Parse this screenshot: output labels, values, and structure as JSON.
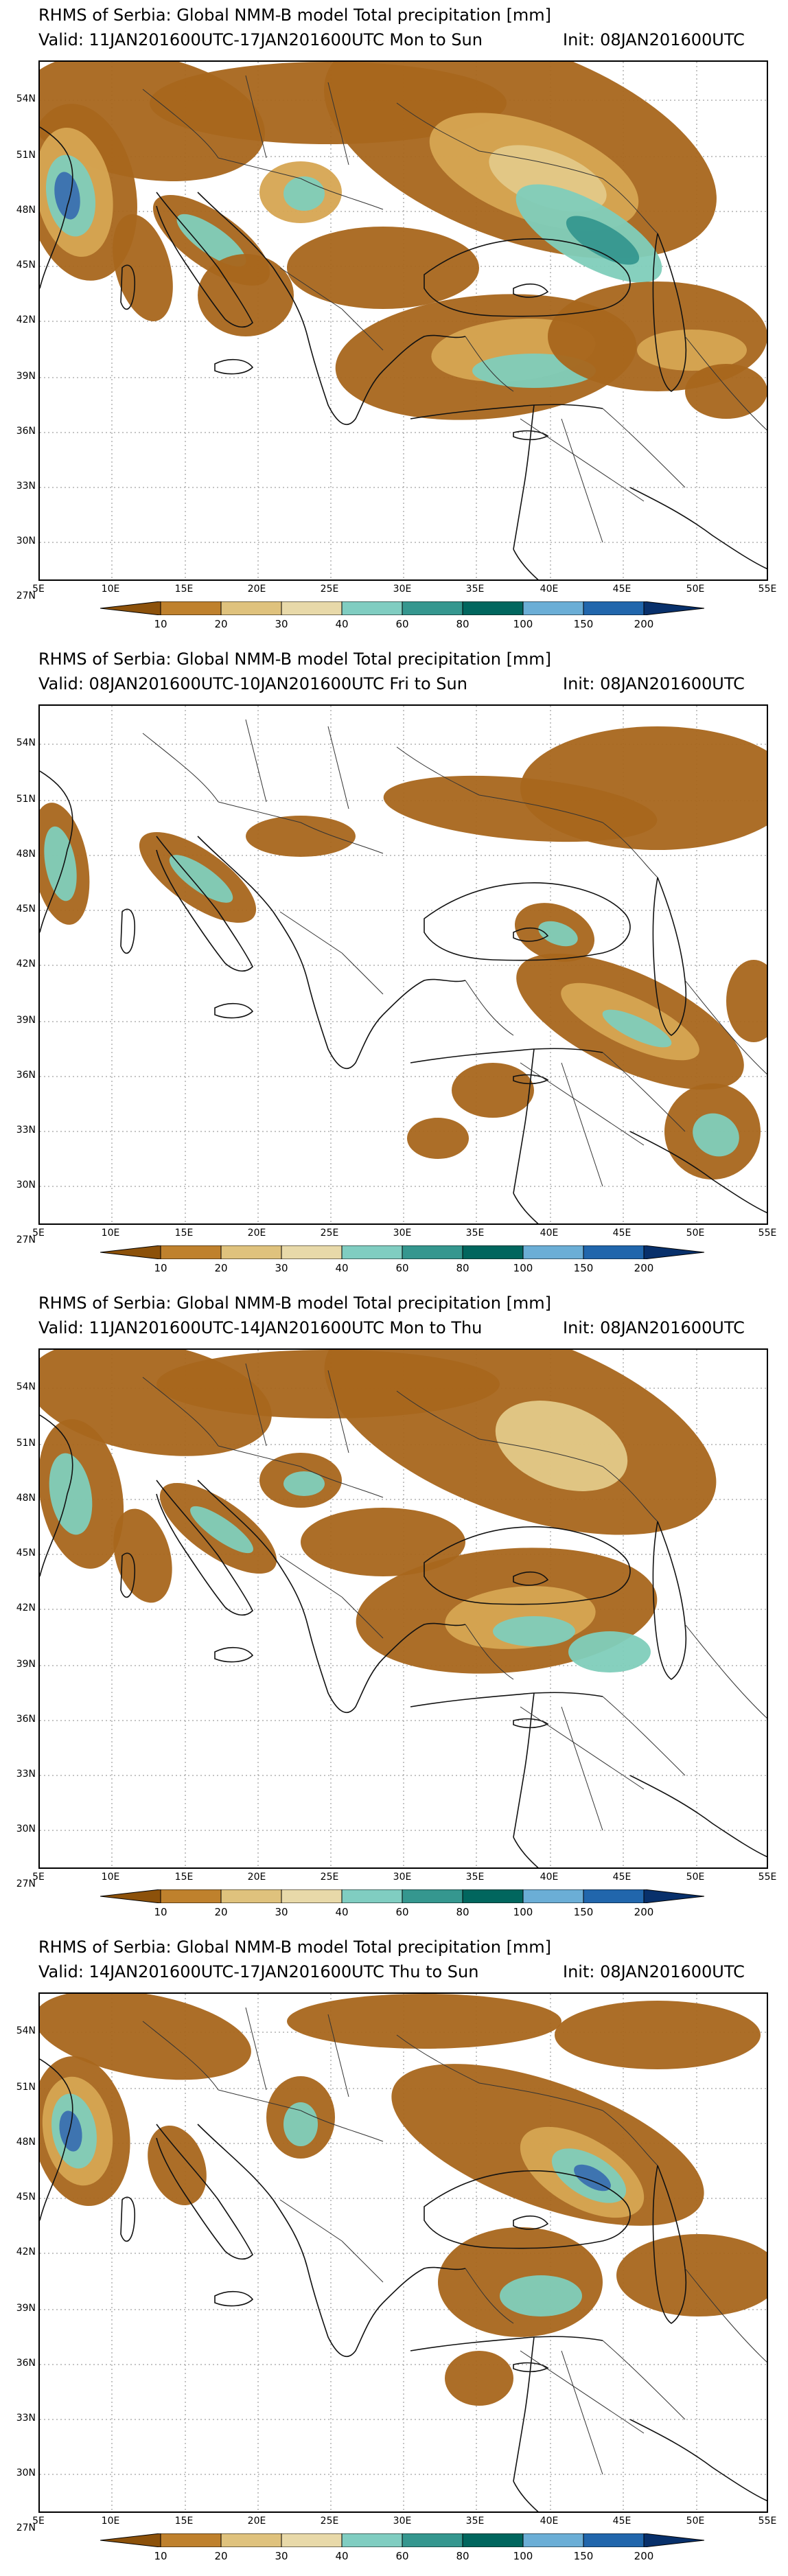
{
  "panels": [
    {
      "title": "RHMS of Serbia: Global NMM-B model Total precipitation [mm]",
      "valid": "Valid: 11JAN201600UTC-17JAN201600UTC Mon to Sun",
      "init": "Init: 08JAN201600UTC"
    },
    {
      "title": "RHMS of Serbia: Global NMM-B model Total precipitation [mm]",
      "valid": "Valid: 08JAN201600UTC-10JAN201600UTC Fri to Sun",
      "init": "Init: 08JAN201600UTC"
    },
    {
      "title": "RHMS of Serbia: Global NMM-B model Total precipitation [mm]",
      "valid": "Valid: 11JAN201600UTC-14JAN201600UTC Mon to Thu",
      "init": "Init: 08JAN201600UTC"
    },
    {
      "title": "RHMS of Serbia: Global NMM-B model Total precipitation [mm]",
      "valid": "Valid: 14JAN201600UTC-17JAN201600UTC Thu to Sun",
      "init": "Init: 08JAN201600UTC"
    }
  ],
  "lat_labels": [
    "54N",
    "51N",
    "48N",
    "45N",
    "42N",
    "39N",
    "36N",
    "33N",
    "30N",
    "27N"
  ],
  "lon_labels": [
    "5E",
    "10E",
    "15E",
    "20E",
    "25E",
    "30E",
    "35E",
    "40E",
    "45E",
    "50E",
    "55E"
  ],
  "colorbar": {
    "labels": [
      "10",
      "20",
      "30",
      "40",
      "60",
      "80",
      "100",
      "150",
      "200"
    ],
    "colors": [
      "#8c510a",
      "#bf812d",
      "#dfc27d",
      "#e8d9a9",
      "#80cdc1",
      "#35978f",
      "#01665e",
      "#6baed6",
      "#2166ac",
      "#08306b"
    ]
  },
  "legend_colors": {
    "low": "#a8661c",
    "mid": "#d6a552",
    "tan": "#e3c988",
    "aqua": "#7fcdbb",
    "teal": "#35978f",
    "blue": "#3a6fb0",
    "navy": "#1f3f7a"
  }
}
